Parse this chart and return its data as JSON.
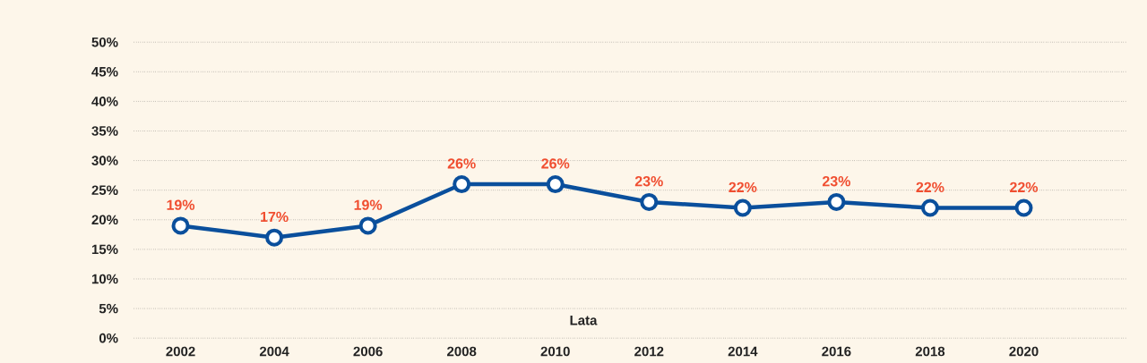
{
  "chart_data": {
    "type": "line",
    "xlabel": "Lata",
    "categories": [
      "2002",
      "2004",
      "2006",
      "2008",
      "2010",
      "2012",
      "2014",
      "2016",
      "2018",
      "2020"
    ],
    "series": [
      {
        "color": "#0a4f9c",
        "values": [
          19,
          17,
          19,
          26,
          26,
          23,
          22,
          23,
          22,
          22
        ]
      }
    ],
    "value_labels": [
      "19%",
      "17%",
      "19%",
      "26%",
      "26%",
      "23%",
      "22%",
      "23%",
      "22%",
      "22%"
    ],
    "ylim": [
      0,
      50
    ],
    "yticks": [
      {
        "value": 0,
        "label": "0%"
      },
      {
        "value": 5,
        "label": "5%"
      },
      {
        "value": 10,
        "label": "10%"
      },
      {
        "value": 15,
        "label": "15%"
      },
      {
        "value": 20,
        "label": "20%"
      },
      {
        "value": 25,
        "label": "25%"
      },
      {
        "value": 30,
        "label": "30%"
      },
      {
        "value": 35,
        "label": "35%"
      },
      {
        "value": 40,
        "label": "40%"
      },
      {
        "value": 45,
        "label": "45%"
      },
      {
        "value": 50,
        "label": "50%"
      }
    ],
    "grid": "y",
    "marker": "circle",
    "line_style": "solid"
  }
}
